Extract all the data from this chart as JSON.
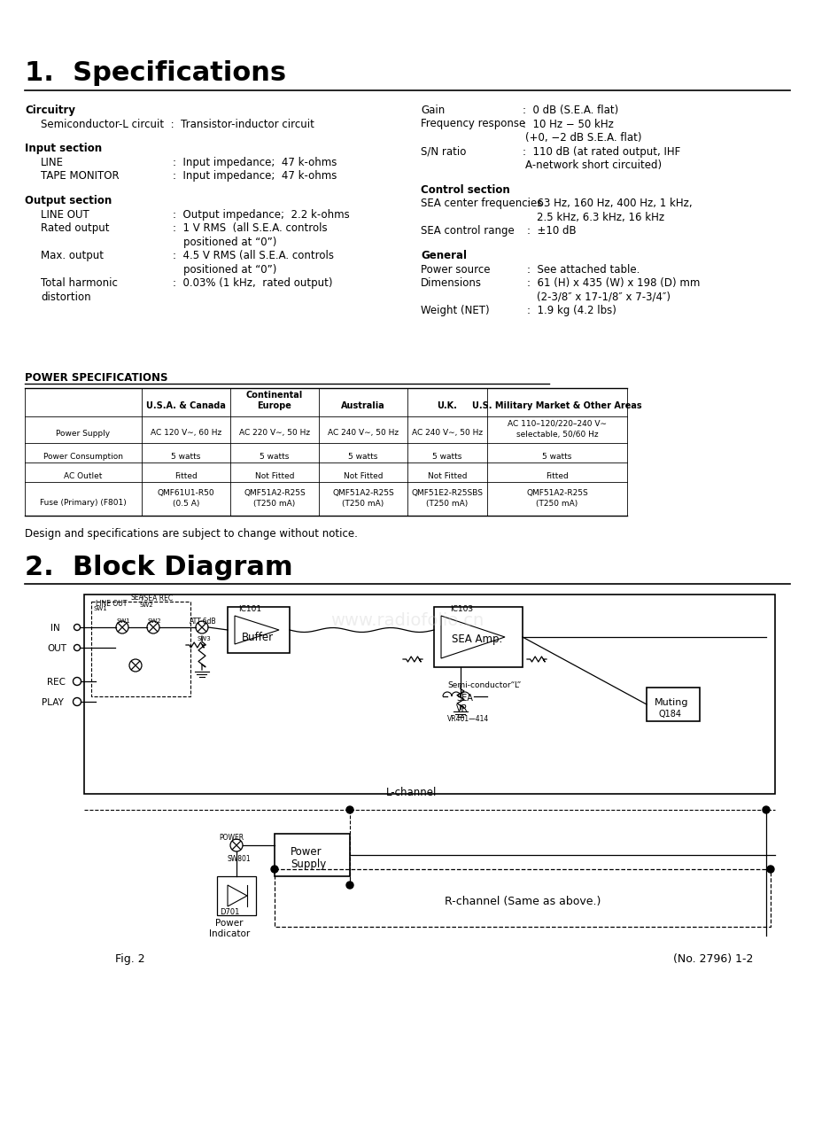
{
  "title1": "1.  Specifications",
  "title2": "2.  Block Diagram",
  "bg_color": "#ffffff",
  "power_table_title": "POWER SPECIFICATIONS",
  "power_table_headers": [
    "",
    "U.S.A. & Canada",
    "Continental\nEurope",
    "Australia",
    "U.K.",
    "U.S. Military Market & Other Areas"
  ],
  "power_table_rows": [
    [
      "Power Supply",
      "AC 120 V∼, 60 Hz",
      "AC 220 V∼, 50 Hz",
      "AC 240 V∼, 50 Hz",
      "AC 240 V∼, 50 Hz",
      "AC 110–120/220–240 V∼\nselectable, 50/60 Hz"
    ],
    [
      "Power Consumption",
      "5 watts",
      "5 watts",
      "5 watts",
      "5 watts",
      "5 watts"
    ],
    [
      "AC Outlet",
      "Fitted",
      "Not Fitted",
      "Not Fitted",
      "Not Fitted",
      "Fitted"
    ],
    [
      "Fuse (Primary) (F801)",
      "QMF61U1-R50\n(0.5 A)",
      "QMF51A2-R25S\n(T250 mA)",
      "QMF51A2-R25S\n(T250 mA)",
      "QMF51E2-R25SBS\n(T250 mA)",
      "QMF51A2-R25S\n(T250 mA)"
    ]
  ],
  "notice_text": "Design and specifications are subject to change without notice.",
  "fig2_label": "Fig. 2",
  "page_label": "(No. 2796) 1-2"
}
